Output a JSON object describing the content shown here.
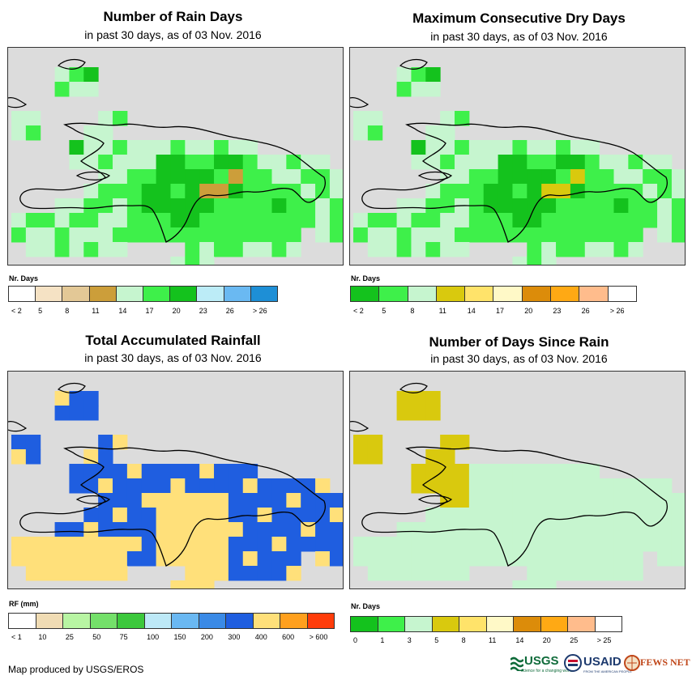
{
  "panels": [
    {
      "id": "rain_days",
      "title": "Number of Rain Days",
      "subtitle": "in past 30 days, as of 03 Nov. 2016",
      "legend_title": "Nr. Days",
      "legend_labels": [
        "< 2",
        "5",
        "8",
        "11",
        "14",
        "17",
        "20",
        "23",
        "26",
        "> 26"
      ],
      "legend_colors": [
        "#ffffff",
        "#f5e2c4",
        "#e3c896",
        "#cc9e3a",
        "#c6f5cf",
        "#3ef04a",
        "#14c21d",
        "#bcecf7",
        "#6ab9f2",
        "#1e8fd6"
      ]
    },
    {
      "id": "max_dry_days",
      "title": "Maximum Consecutive Dry Days",
      "subtitle": "in past 30 days, as of 03 Nov. 2016",
      "legend_title": "Nr. Days",
      "legend_labels": [
        "< 2",
        "5",
        "8",
        "11",
        "14",
        "17",
        "20",
        "23",
        "26",
        "> 26"
      ],
      "legend_colors": [
        "#14c21d",
        "#3ef04a",
        "#c6f5cf",
        "#d9c90e",
        "#ffe36a",
        "#fff9c7",
        "#dc8c0a",
        "#ffa914",
        "#ffbc8c",
        "#ffffff"
      ]
    },
    {
      "id": "total_rainfall",
      "title": "Total Accumulated Rainfall",
      "subtitle": "in past 30 days, as of 03 Nov. 2016",
      "legend_title": "RF (mm)",
      "legend_labels": [
        "< 1",
        "10",
        "25",
        "50",
        "75",
        "100",
        "150",
        "200",
        "300",
        "400",
        "600",
        "> 600"
      ],
      "legend_colors": [
        "#ffffff",
        "#f0dcb4",
        "#b8f5a3",
        "#74e06a",
        "#3cc83c",
        "#bde9f7",
        "#6ab8f2",
        "#3a8ae6",
        "#1f5ee0",
        "#ffe07a",
        "#ffa01e",
        "#ff3c0a"
      ]
    },
    {
      "id": "days_since_rain",
      "title": "Number of Days Since Rain",
      "subtitle": "in past 30 days, as of 03 Nov. 2016",
      "legend_title": "Nr. Days",
      "legend_labels": [
        "0",
        "1",
        "3",
        "5",
        "8",
        "11",
        "14",
        "20",
        "25",
        "> 25"
      ],
      "legend_colors": [
        "#14c21d",
        "#3ef04a",
        "#c6f5cf",
        "#d9c90e",
        "#ffe36a",
        "#fff9c7",
        "#dc8c0a",
        "#ffa914",
        "#ffbc8c",
        "#ffffff"
      ]
    }
  ],
  "credit": "Map produced by USGS/EROS",
  "logos": {
    "usgs": "USGS",
    "usgs_tagline": "science for a changing world",
    "usaid": "USAID",
    "usaid_tagline": "FROM THE AMERICAN PEOPLE",
    "fewsnet": "FEWS NET"
  },
  "colors": {
    "ocean": "#dcdcdc",
    "outline": "#000000"
  }
}
